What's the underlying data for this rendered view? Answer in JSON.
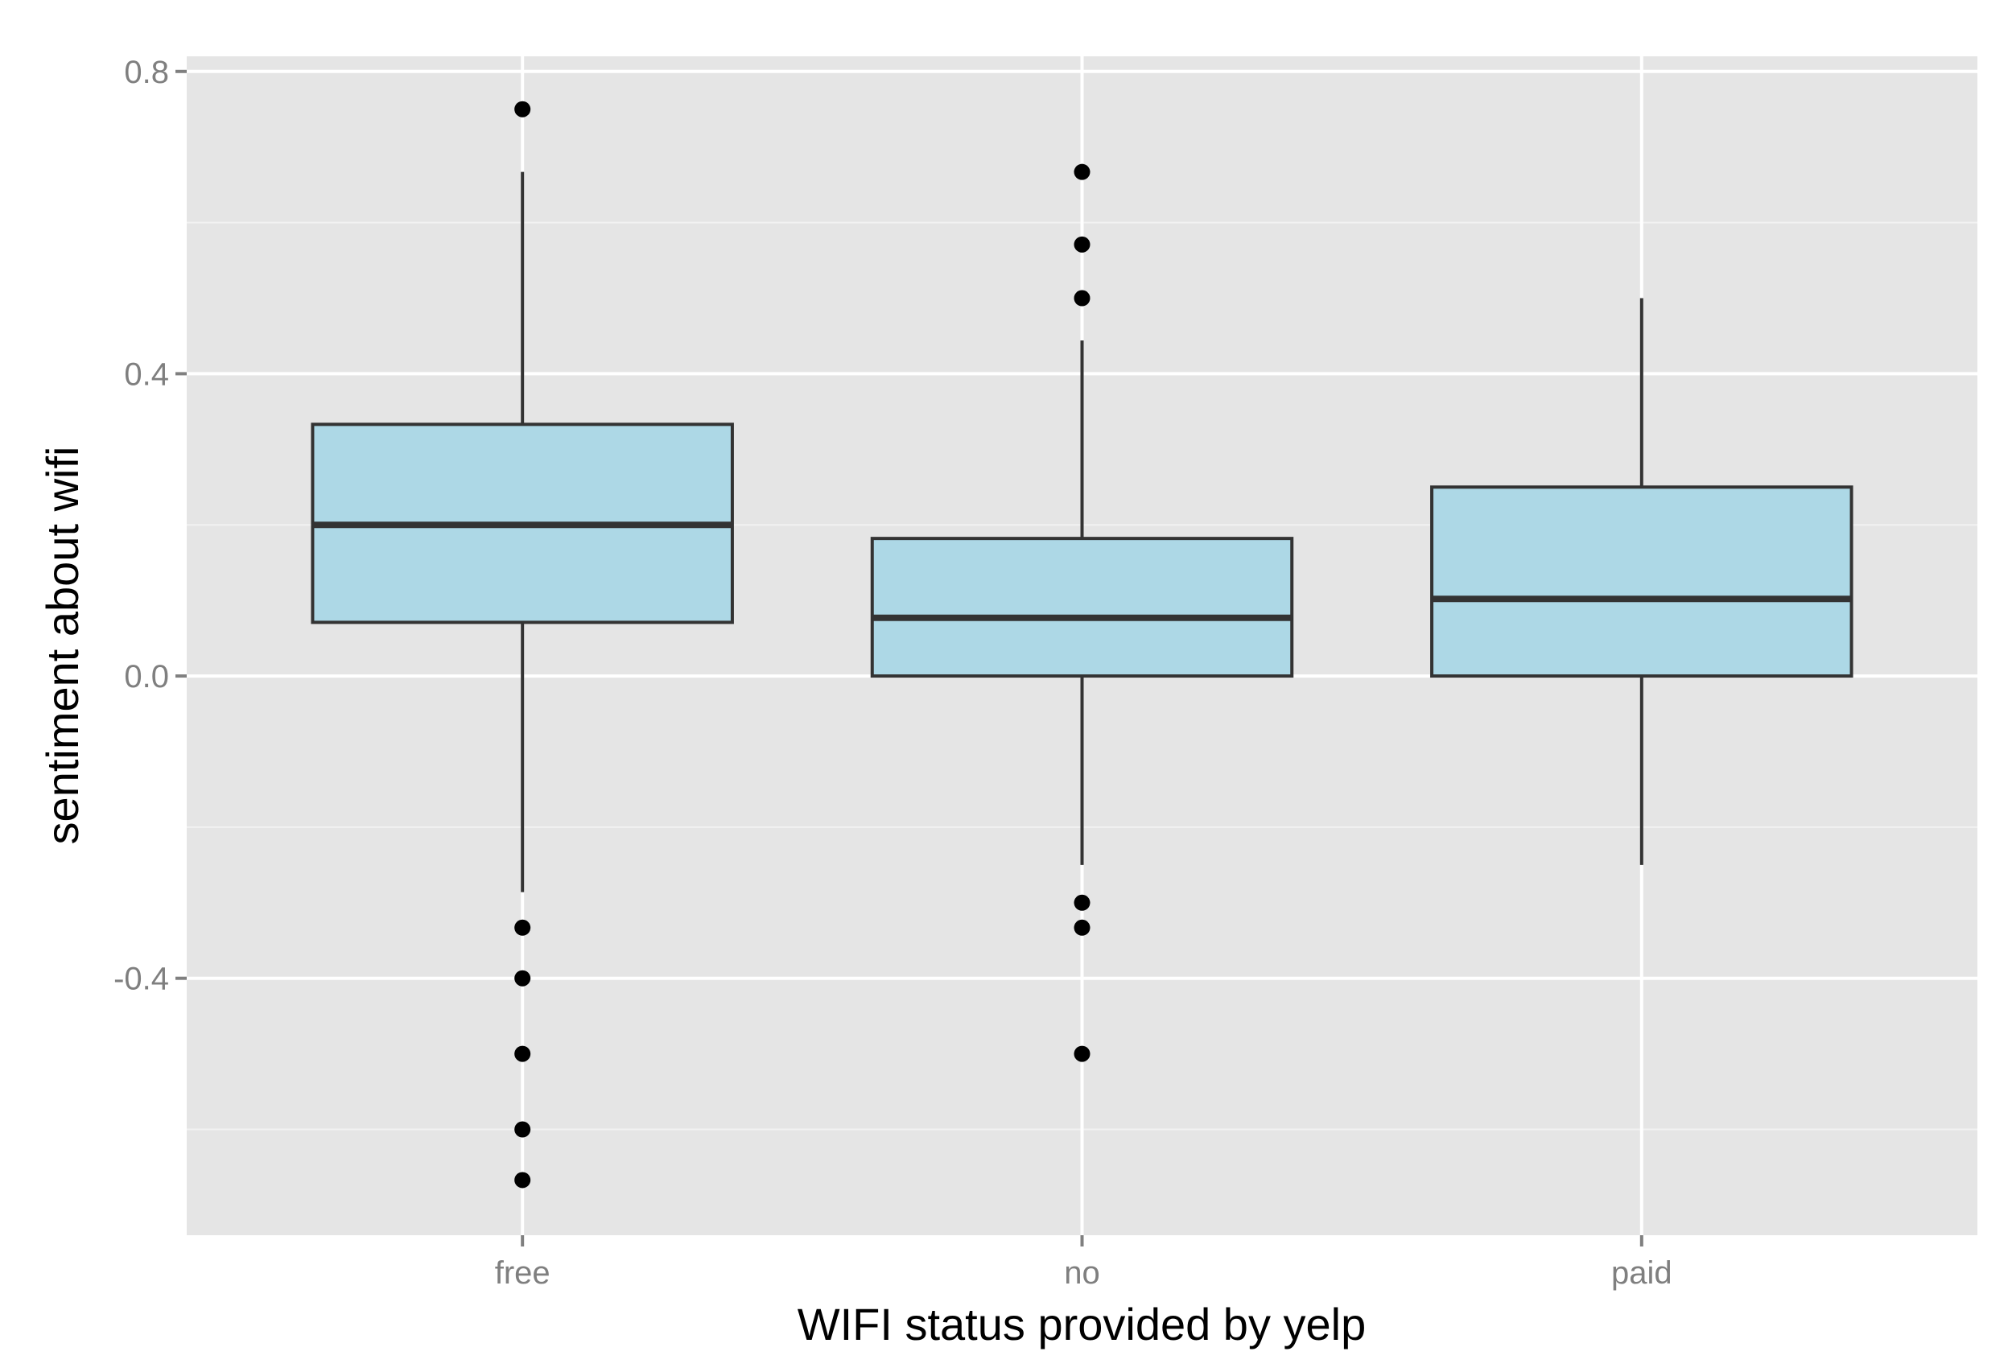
{
  "chart_data": {
    "type": "boxplot",
    "title": "",
    "xlabel": "WIFI status provided by yelp",
    "ylabel": "sentiment about wifi",
    "categories": [
      "free",
      "no",
      "paid"
    ],
    "ylim": [
      -0.74,
      0.82
    ],
    "y_ticks": [
      -0.4,
      0.0,
      0.4,
      0.8
    ],
    "y_tick_labels": [
      "-0.4",
      "0.0",
      "0.4",
      "0.8"
    ],
    "grid": true,
    "legend": "none",
    "boxes": [
      {
        "category": "free",
        "lower_whisker": -0.286,
        "q1": 0.071,
        "median": 0.2,
        "q3": 0.333,
        "upper_whisker": 0.667,
        "outliers": [
          0.75,
          -0.333,
          -0.4,
          -0.5,
          -0.6,
          -0.667
        ]
      },
      {
        "category": "no",
        "lower_whisker": -0.25,
        "q1": 0.0,
        "median": 0.077,
        "q3": 0.182,
        "upper_whisker": 0.444,
        "outliers": [
          0.667,
          0.571,
          0.5,
          -0.3,
          -0.333,
          -0.5
        ]
      },
      {
        "category": "paid",
        "lower_whisker": -0.25,
        "q1": 0.0,
        "median": 0.102,
        "q3": 0.25,
        "upper_whisker": 0.5,
        "outliers": []
      }
    ],
    "colors": {
      "panel_background": "#e5e5e5",
      "grid_major": "#ffffff",
      "grid_minor": "#f2f2f2",
      "box_fill": "#add8e6",
      "box_stroke": "#333333",
      "outlier": "#000000",
      "tick_label": "#7f7f7f",
      "axis_title": "#000000"
    }
  }
}
